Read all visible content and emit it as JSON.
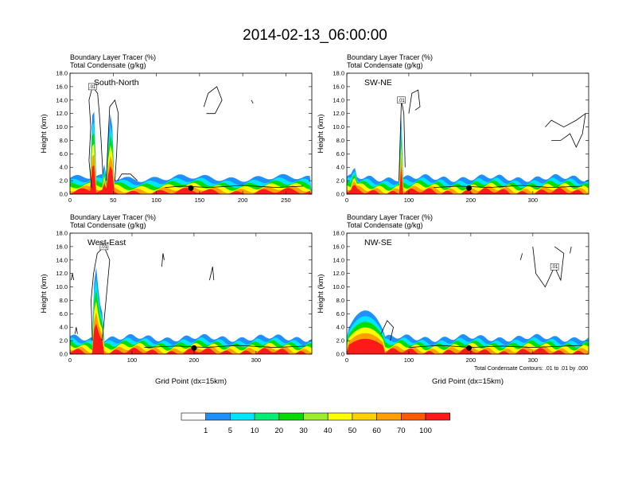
{
  "figure": {
    "title": "2014-02-13_06:00:00",
    "note": "Total Condensate Contours: .01 to .01 by .000"
  },
  "colorbar": {
    "levels": [
      "1",
      "5",
      "10",
      "20",
      "30",
      "40",
      "50",
      "60",
      "70",
      "100"
    ],
    "colors": [
      "#ffffff",
      "#1e90ff",
      "#00e5ff",
      "#00ee76",
      "#00dd00",
      "#9aee2a",
      "#ffff00",
      "#ffd000",
      "#ff9f00",
      "#ff5a00",
      "#ff1a1a"
    ]
  },
  "chart_data": [
    {
      "type": "contour",
      "panel": "South-North",
      "title_lines": [
        "Boundary Layer Tracer    (%)",
        "Total Condensate    (g/kg)"
      ],
      "ylabel": "Height (km)",
      "xlabel": "",
      "xlim": [
        0,
        280
      ],
      "ylim": [
        0,
        18
      ],
      "xticks": [
        0,
        50,
        100,
        150,
        200,
        250
      ],
      "yticks": [
        0,
        2,
        4,
        6,
        8,
        10,
        12,
        14,
        16,
        18
      ],
      "ytick_labels": [
        "0.0",
        "2.0",
        "4.0",
        "6.0",
        "8.0",
        "10.0",
        "12.0",
        "14.0",
        "16.0",
        "18.0"
      ],
      "marker_x": 140,
      "contour_label": ".01",
      "plumes": [
        {
          "x": 27,
          "w": 6,
          "top": 13
        },
        {
          "x": 47,
          "w": 7,
          "top": 12
        },
        {
          "x": 40,
          "w": 4,
          "top": 4.5
        }
      ],
      "contours": [
        [
          [
            25,
            1
          ],
          [
            22,
            5
          ],
          [
            24,
            10
          ],
          [
            22,
            14
          ],
          [
            26,
            16
          ],
          [
            32,
            15
          ],
          [
            34,
            12
          ],
          [
            36,
            8
          ],
          [
            38,
            3
          ]
        ],
        [
          [
            42,
            2
          ],
          [
            44,
            8
          ],
          [
            46,
            13
          ],
          [
            52,
            14
          ],
          [
            56,
            12
          ],
          [
            54,
            6
          ],
          [
            52,
            2
          ]
        ],
        [
          [
            155,
            13
          ],
          [
            160,
            15
          ],
          [
            170,
            16
          ],
          [
            176,
            14
          ],
          [
            168,
            12
          ],
          [
            158,
            12
          ]
        ],
        [
          [
            55,
            2
          ],
          [
            60,
            3
          ],
          [
            70,
            3
          ],
          [
            78,
            2
          ]
        ],
        [
          [
            210,
            14
          ],
          [
            212,
            13.5
          ]
        ],
        [
          [
            110,
            1
          ],
          [
            130,
            1.2
          ],
          [
            160,
            1
          ],
          [
            200,
            1.3
          ],
          [
            240,
            1
          ],
          [
            270,
            1.2
          ]
        ]
      ]
    },
    {
      "type": "contour",
      "panel": "SW-NE",
      "title_lines": [
        "Boundary Layer Tracer    (%)",
        "Total Condensate    (g/kg)"
      ],
      "ylabel": "Height (km)",
      "xlabel": "",
      "xlim": [
        0,
        390
      ],
      "ylim": [
        0,
        18
      ],
      "xticks": [
        0,
        100,
        200,
        300
      ],
      "yticks": [
        0,
        2,
        4,
        6,
        8,
        10,
        12,
        14,
        16,
        18
      ],
      "ytick_labels": [
        "0.0",
        "2.0",
        "4.0",
        "6.0",
        "8.0",
        "10.0",
        "12.0",
        "14.0",
        "16.0",
        "18.0"
      ],
      "marker_x": 197,
      "contour_label": ".01",
      "plumes": [
        {
          "x": 88,
          "w": 6,
          "top": 12
        },
        {
          "x": 12,
          "w": 10,
          "top": 4
        }
      ],
      "contours": [
        [
          [
            84,
            2
          ],
          [
            86,
            8
          ],
          [
            88,
            14
          ],
          [
            92,
            12
          ],
          [
            94,
            4
          ]
        ],
        [
          [
            100,
            12
          ],
          [
            105,
            15
          ],
          [
            115,
            15.5
          ],
          [
            118,
            13
          ],
          [
            110,
            12.5
          ]
        ],
        [
          [
            320,
            10
          ],
          [
            330,
            11
          ],
          [
            350,
            10
          ],
          [
            370,
            11
          ],
          [
            385,
            12
          ],
          [
            380,
            9
          ],
          [
            370,
            7
          ],
          [
            360,
            9
          ],
          [
            345,
            8
          ],
          [
            330,
            8
          ]
        ],
        [
          [
            140,
            1
          ],
          [
            180,
            1.2
          ],
          [
            230,
            1
          ],
          [
            280,
            1.3
          ],
          [
            330,
            1
          ],
          [
            380,
            1.2
          ]
        ]
      ]
    },
    {
      "type": "contour",
      "panel": "West-East",
      "title_lines": [
        "Boundary Layer Tracer    (%)",
        "Total Condensate    (g/kg)"
      ],
      "ylabel": "Height (km)",
      "xlabel": "Grid Point (dx=15km)",
      "xlim": [
        0,
        390
      ],
      "ylim": [
        0,
        18
      ],
      "xticks": [
        0,
        100,
        200,
        300
      ],
      "yticks": [
        0,
        2,
        4,
        6,
        8,
        10,
        12,
        14,
        16,
        18
      ],
      "ytick_labels": [
        "0.0",
        "2.0",
        "4.0",
        "6.0",
        "8.0",
        "10.0",
        "12.0",
        "14.0",
        "16.0",
        "18.0"
      ],
      "marker_x": 200,
      "contour_label": ".01",
      "plumes": [
        {
          "x": 42,
          "w": 10,
          "top": 13
        },
        {
          "x": 50,
          "w": 6,
          "top": 8
        }
      ],
      "contours": [
        [
          [
            36,
            2
          ],
          [
            34,
            8
          ],
          [
            38,
            12
          ],
          [
            44,
            15
          ],
          [
            55,
            16
          ],
          [
            64,
            14
          ],
          [
            60,
            10
          ],
          [
            56,
            6
          ],
          [
            52,
            2
          ]
        ],
        [
          [
            2,
            11
          ],
          [
            4,
            12
          ],
          [
            6,
            11
          ]
        ],
        [
          [
            8,
            3
          ],
          [
            10,
            4
          ],
          [
            12,
            3
          ]
        ],
        [
          [
            148,
            13
          ],
          [
            150,
            15
          ],
          [
            152,
            14
          ]
        ],
        [
          [
            225,
            11
          ],
          [
            230,
            13
          ],
          [
            232,
            11
          ]
        ],
        [
          [
            120,
            1
          ],
          [
            170,
            1.2
          ],
          [
            220,
            1
          ],
          [
            270,
            1.3
          ],
          [
            330,
            1
          ],
          [
            380,
            1.2
          ]
        ]
      ]
    },
    {
      "type": "contour",
      "panel": "NW-SE",
      "title_lines": [
        "Boundary Layer Tracer    (%)",
        "Total Condensate    (g/kg)"
      ],
      "ylabel": "Height (km)",
      "xlabel": "Grid Point (dx=15km)",
      "xlim": [
        0,
        390
      ],
      "ylim": [
        0,
        18
      ],
      "xticks": [
        0,
        100,
        200,
        300
      ],
      "yticks": [
        0,
        2,
        4,
        6,
        8,
        10,
        12,
        14,
        16,
        18
      ],
      "ytick_labels": [
        "0.0",
        "2.0",
        "4.0",
        "6.0",
        "8.0",
        "10.0",
        "12.0",
        "14.0",
        "16.0",
        "18.0"
      ],
      "marker_x": 197,
      "contour_label": ".01",
      "plumes": [
        {
          "x": 30,
          "w": 60,
          "top": 6.5
        }
      ],
      "contours": [
        [
          [
            300,
            16
          ],
          [
            305,
            12
          ],
          [
            320,
            10
          ],
          [
            335,
            13
          ],
          [
            345,
            11
          ],
          [
            350,
            15
          ],
          [
            335,
            16
          ]
        ],
        [
          [
            280,
            14
          ],
          [
            283,
            15
          ]
        ],
        [
          [
            360,
            15
          ],
          [
            362,
            16
          ]
        ],
        [
          [
            55,
            3
          ],
          [
            65,
            5
          ],
          [
            75,
            4
          ],
          [
            70,
            2
          ]
        ],
        [
          [
            100,
            1
          ],
          [
            150,
            1.3
          ],
          [
            200,
            1
          ],
          [
            250,
            1.2
          ],
          [
            300,
            1
          ],
          [
            380,
            1.3
          ]
        ]
      ]
    }
  ]
}
